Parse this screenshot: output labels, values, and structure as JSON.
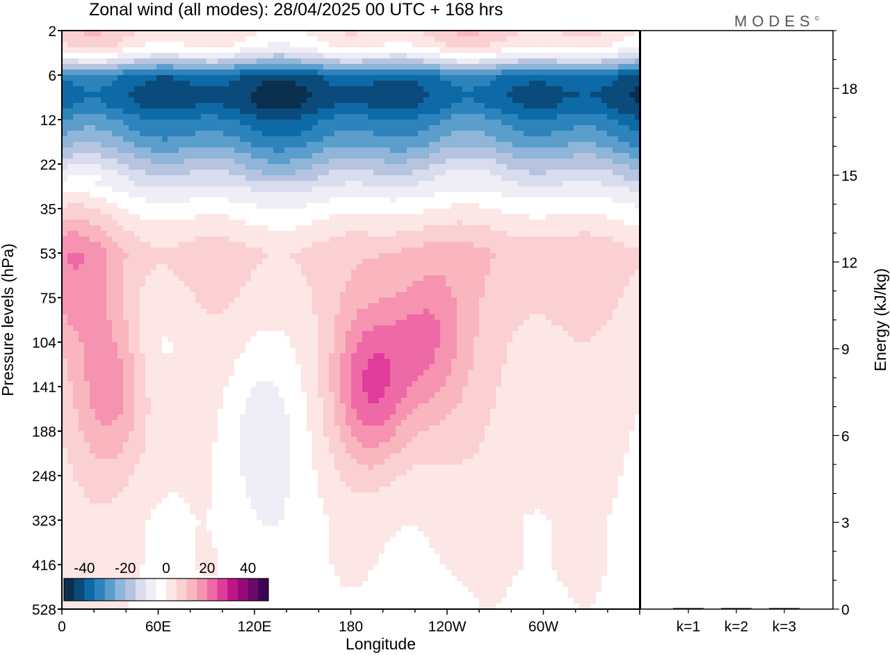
{
  "title": "Zonal wind (all modes):  28/04/2025  00 UTC  + 168 hrs",
  "brand": "MODES",
  "brand_mark": "©",
  "chart_data": [
    {
      "type": "heatmap",
      "xlabel": "Longitude",
      "ylabel": "Pressure levels (hPa)",
      "x_ticks": [
        "0",
        "60E",
        "120E",
        "180",
        "120W",
        "60W"
      ],
      "x_tick_lon": [
        0,
        60,
        120,
        180,
        240,
        300
      ],
      "xlim": [
        0,
        360
      ],
      "y_ticks": [
        "2",
        "6",
        "12",
        "22",
        "35",
        "53",
        "75",
        "104",
        "141",
        "188",
        "248",
        "323",
        "416",
        "528"
      ],
      "colorbar": {
        "labels": [
          "-40",
          "-20",
          "0",
          "20",
          "40"
        ],
        "label_values": [
          -40,
          -20,
          0,
          20,
          40
        ],
        "levels": [
          -45,
          -40,
          -35,
          -30,
          -25,
          -20,
          -15,
          -10,
          -5,
          0,
          5,
          10,
          15,
          20,
          25,
          30,
          35,
          40,
          45
        ],
        "colors": [
          "#0b2f4f",
          "#0a4b7c",
          "#0d6aa6",
          "#2d84bd",
          "#5b9ecb",
          "#8fb5d8",
          "#b6c4e0",
          "#d8dced",
          "#efedf5",
          "#ffffff",
          "#fde6e6",
          "#fbd0d3",
          "#f9b6be",
          "#f593b0",
          "#ee6aa6",
          "#df3c9b",
          "#c0168a",
          "#960b78",
          "#6a0a68",
          "#3f0353"
        ]
      },
      "level_profile": [
        {
          "level": "2",
          "u": 5
        },
        {
          "level": "3",
          "u": 0
        },
        {
          "level": "4",
          "u": -12
        },
        {
          "level": "5",
          "u": -25
        },
        {
          "level": "6",
          "u": -38
        },
        {
          "level": "8",
          "u": -42
        },
        {
          "level": "10",
          "u": -40
        },
        {
          "level": "12",
          "u": -34
        },
        {
          "level": "16",
          "u": -28
        },
        {
          "level": "22",
          "u": -18
        },
        {
          "level": "28",
          "u": -9
        },
        {
          "level": "35",
          "u": -2
        },
        {
          "level": "44",
          "u": 4
        },
        {
          "level": "53",
          "u": 8
        },
        {
          "level": "75",
          "u": 6
        },
        {
          "level": "104",
          "u": 4
        },
        {
          "level": "141",
          "u": 3
        },
        {
          "level": "188",
          "u": 2
        },
        {
          "level": "248",
          "u": 1
        },
        {
          "level": "323",
          "u": 0
        },
        {
          "level": "416",
          "u": 0
        },
        {
          "level": "528",
          "u": -1
        }
      ],
      "features": [
        {
          "lon": 193,
          "level": "141",
          "u": 22
        },
        {
          "lon": 227,
          "level": "104",
          "u": 15
        },
        {
          "lon": 33,
          "level": "141",
          "u": 14
        },
        {
          "lon": 5,
          "level": "53",
          "u": 12
        },
        {
          "lon": 123,
          "level": "188",
          "u": -8
        },
        {
          "lon": 55,
          "level": "104",
          "u": -6
        },
        {
          "lon": 245,
          "level": "528",
          "u": -3
        }
      ]
    },
    {
      "type": "bar",
      "categories": [
        "k=1",
        "k=2",
        "k=3"
      ],
      "values": [
        0.02,
        0.01,
        0.01
      ],
      "ylabel": "Energy (kJ/kg)",
      "y_ticks": [
        "0",
        "3",
        "6",
        "9",
        "12",
        "15",
        "18"
      ],
      "ylim": [
        0,
        20
      ]
    }
  ]
}
